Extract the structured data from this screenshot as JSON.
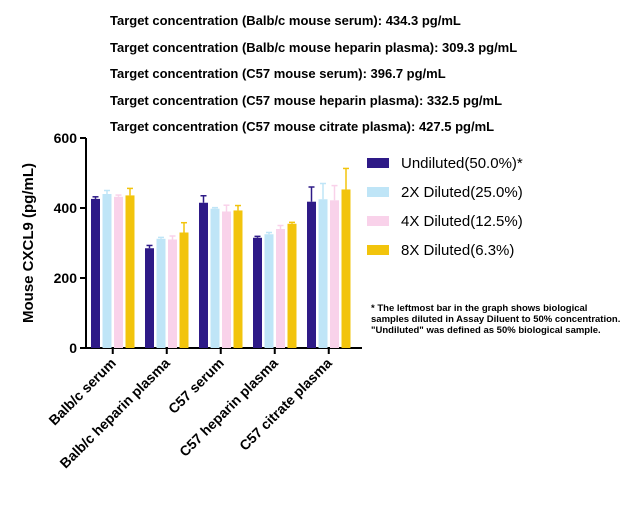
{
  "targets": [
    "Target concentration (Balb/c mouse serum): 434.3 pg/mL",
    "Target concentration (Balb/c mouse heparin plasma): 309.3 pg/mL",
    "Target concentration (C57 mouse serum): 396.7 pg/mL",
    "Target concentration (C57 mouse heparin plasma): 332.5 pg/mL",
    "Target concentration (C57 mouse citrate plasma): 427.5 pg/mL"
  ],
  "footnote": "* The leftmost bar in the graph shows biological samples diluted in Assay Diluent to 50% concentration. \"Undiluted\" was defined as 50% biological sample.",
  "chart_data": {
    "type": "bar",
    "ylabel": "Mouse CXCL9 (pg/mL)",
    "ylim": [
      0,
      600
    ],
    "yticks": [
      0,
      200,
      400,
      600
    ],
    "categories": [
      "Balb/c serum",
      "Balb/c heparin plasma",
      "C57 serum",
      "C57 heparin plasma",
      "C57 citrate plasma"
    ],
    "legend_position": "right",
    "series": [
      {
        "name": "Undiluted(50.0%)*",
        "color": "#2e1a87",
        "values": [
          426,
          285,
          415,
          315,
          418
        ],
        "errors": [
          6,
          8,
          20,
          4,
          42
        ]
      },
      {
        "name": "2X Diluted(25.0%)",
        "color": "#bfe5f7",
        "values": [
          440,
          312,
          398,
          325,
          425
        ],
        "errors": [
          10,
          4,
          3,
          5,
          45
        ]
      },
      {
        "name": "4X Diluted(12.5%)",
        "color": "#f9d2ea",
        "values": [
          432,
          310,
          390,
          340,
          422
        ],
        "errors": [
          5,
          10,
          18,
          10,
          42
        ]
      },
      {
        "name": "8X Diluted(6.3%)",
        "color": "#f2c40c",
        "values": [
          436,
          330,
          393,
          355,
          453
        ],
        "errors": [
          20,
          28,
          14,
          4,
          60
        ]
      }
    ]
  }
}
